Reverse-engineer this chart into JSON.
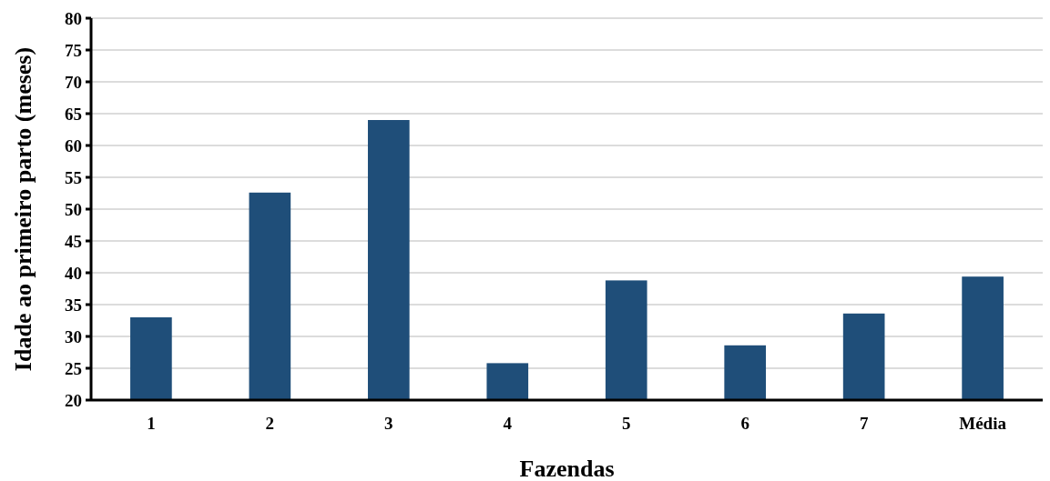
{
  "chart_data": {
    "type": "bar",
    "xlabel": "Fazendas",
    "ylabel": "Idade ao primeiro parto (meses)",
    "categories": [
      "1",
      "2",
      "3",
      "4",
      "5",
      "6",
      "7",
      "Média"
    ],
    "values": [
      33.0,
      52.6,
      64.0,
      25.8,
      38.8,
      28.6,
      33.6,
      39.4
    ],
    "color": "#1f4e79",
    "ylim": [
      20,
      80
    ],
    "yticks": [
      20,
      25,
      30,
      35,
      40,
      45,
      50,
      55,
      60,
      65,
      70,
      75,
      80
    ],
    "grid": "y"
  }
}
